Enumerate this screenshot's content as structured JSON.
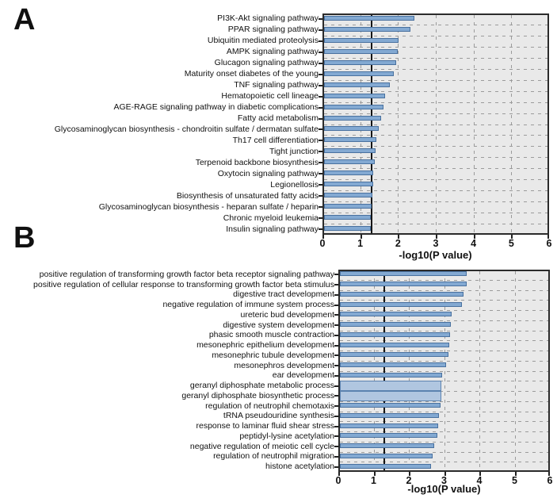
{
  "panel_labels": [
    "A",
    "B"
  ],
  "colors": {
    "bar_fill": "#83a9d2",
    "bar_border": "#49719f",
    "highlight_fill": "#b0c6e0",
    "highlight_border": "#5c83b0",
    "plot_background": "#e9e9e9",
    "grid": "#9b9b9b",
    "threshold_line": "#151515",
    "text": "#111111"
  },
  "chart_data": [
    {
      "type": "bar",
      "orientation": "horizontal",
      "title": "",
      "xlabel": "-log10(P value)",
      "ylabel": "",
      "xlim": [
        0,
        6
      ],
      "xticks": [
        0,
        1,
        2,
        3,
        4,
        5,
        6
      ],
      "threshold_x": 1.3,
      "grid": "dashed",
      "legend": "none",
      "categories": [
        "PI3K-Akt signaling pathway",
        "PPAR signaling pathway",
        "Ubiquitin mediated proteolysis",
        "AMPK signaling pathway",
        "Glucagon signaling pathway",
        "Maturity onset diabetes of the young",
        "TNF signaling pathway",
        "Hematopoietic cell lineage",
        "AGE-RAGE signaling pathway in diabetic complications",
        "Fatty acid metabolism",
        "Glycosaminoglycan biosynthesis - chondroitin sulfate / dermatan sulfate",
        "Th17 cell differentiation",
        "Tight junction",
        "Terpenoid backbone biosynthesis",
        "Oxytocin signaling pathway",
        "Legionellosis",
        "Biosynthesis of unsaturated fatty acids",
        "Glycosaminoglycan biosynthesis - heparan sulfate / heparin",
        "Chronic myeloid leukemia",
        "Insulin signaling pathway"
      ],
      "values": [
        2.43,
        2.33,
        2.02,
        2.0,
        1.95,
        1.89,
        1.78,
        1.66,
        1.61,
        1.56,
        1.48,
        1.43,
        1.4,
        1.38,
        1.35,
        1.34,
        1.33,
        1.31,
        1.29,
        1.27
      ],
      "highlight_rows": []
    },
    {
      "type": "bar",
      "orientation": "horizontal",
      "title": "",
      "xlabel": "-log10(P value)",
      "ylabel": "",
      "xlim": [
        0,
        6
      ],
      "xticks": [
        0,
        1,
        2,
        3,
        4,
        5,
        6
      ],
      "threshold_x": 1.3,
      "grid": "dashed",
      "legend": "none",
      "categories": [
        "positive regulation of transforming growth factor beta receptor signaling pathway",
        "positive regulation of cellular response to transforming growth factor beta stimulus",
        "digestive tract development",
        "negative regulation of immune system process",
        "ureteric bud development",
        "digestive system development",
        "phasic smooth muscle contraction",
        "mesonephric epithelium development",
        "mesonephric tubule development",
        "mesonephros development",
        "ear development",
        "geranyl diphosphate metabolic process",
        "geranyl diphosphate biosynthetic process",
        "regulation of neutrophil chemotaxis",
        "tRNA pseudouridine synthesis",
        "response to laminar fluid shear stress",
        "peptidyl-lysine acetylation",
        "negative regulation of meiotic cell cycle",
        "regulation of neutrophil migration",
        "histone acetylation"
      ],
      "values": [
        3.64,
        3.63,
        3.55,
        3.51,
        3.21,
        3.19,
        3.17,
        3.15,
        3.13,
        3.05,
        2.94,
        2.92,
        2.92,
        2.9,
        2.85,
        2.83,
        2.8,
        2.71,
        2.68,
        2.62
      ],
      "highlight_rows": [
        11,
        12
      ]
    }
  ]
}
